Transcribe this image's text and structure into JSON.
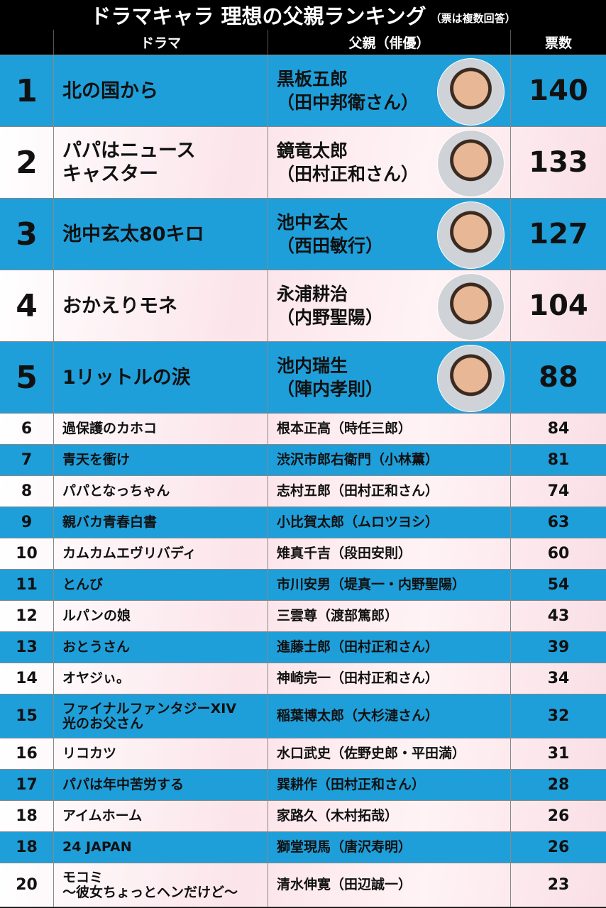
{
  "title": "ドラマキャラ 理想の父親ランキング",
  "subtitle": "（票は複数回答）",
  "header": [
    "ドラマ",
    "父親（俳優）",
    "票数"
  ],
  "rows": [
    {
      "rank": 1,
      "drama": [
        "北の国から"
      ],
      "father": [
        "黒板五郎",
        "（田中邦衛さん）"
      ],
      "votes": 140
    },
    {
      "rank": 2,
      "drama": [
        "パパはニュース",
        "キャスター"
      ],
      "father": [
        "鏡竜太郎",
        "（田村正和さん）"
      ],
      "votes": 133
    },
    {
      "rank": 3,
      "drama": [
        "池中玄太80キロ"
      ],
      "father": [
        "池中玄太",
        "（西田敏行）"
      ],
      "votes": 127
    },
    {
      "rank": 4,
      "drama": [
        "おかえりモネ"
      ],
      "father": [
        "永浦耕治",
        "（内野聖陽）"
      ],
      "votes": 104
    },
    {
      "rank": 5,
      "drama": [
        "1リットルの涙"
      ],
      "father": [
        "池内瑞生",
        "（陣内孝則）"
      ],
      "votes": 88
    },
    {
      "rank": 6,
      "drama": [
        "過保護のカホコ"
      ],
      "father": [
        "根本正高（時任三郎）"
      ],
      "votes": 84
    },
    {
      "rank": 7,
      "drama": [
        "青天を衝け"
      ],
      "father": [
        "渋沢市郎右衛門（小林薫）"
      ],
      "votes": 81
    },
    {
      "rank": 8,
      "drama": [
        "パパとなっちゃん"
      ],
      "father": [
        "志村五郎（田村正和さん）"
      ],
      "votes": 74
    },
    {
      "rank": 9,
      "drama": [
        "親バカ青春白書"
      ],
      "father": [
        "小比賀太郎（ムロツヨシ）"
      ],
      "votes": 63
    },
    {
      "rank": 10,
      "drama": [
        "カムカムエヴリバディ"
      ],
      "father": [
        "雉真千吉（段田安則）"
      ],
      "votes": 60
    },
    {
      "rank": 11,
      "drama": [
        "とんび"
      ],
      "father": [
        "市川安男（堤真一・内野聖陽）"
      ],
      "votes": 54
    },
    {
      "rank": 12,
      "drama": [
        "ルパンの娘"
      ],
      "father": [
        "三雲尊（渡部篤郎）"
      ],
      "votes": 43
    },
    {
      "rank": 13,
      "drama": [
        "おとうさん"
      ],
      "father": [
        "進藤士郎（田村正和さん）"
      ],
      "votes": 39
    },
    {
      "rank": 14,
      "drama": [
        "オヤジぃ。"
      ],
      "father": [
        "神崎完一（田村正和さん）"
      ],
      "votes": 34
    },
    {
      "rank": 15,
      "drama": [
        "ファイナルファンタジーXIV",
        "光のお父さん"
      ],
      "father": [
        "稲葉博太郎（大杉漣さん）"
      ],
      "votes": 32
    },
    {
      "rank": 16,
      "drama": [
        "リコカツ"
      ],
      "father": [
        "水口武史（佐野史郎・平田満）"
      ],
      "votes": 31
    },
    {
      "rank": 17,
      "drama": [
        "パパは年中苦労する"
      ],
      "father": [
        "巽耕作（田村正和さん）"
      ],
      "votes": 28
    },
    {
      "rank": 18,
      "drama": [
        "アイムホーム"
      ],
      "father": [
        "家路久（木村拓哉）"
      ],
      "votes": 26
    },
    {
      "rank": 18,
      "drama": [
        "24 JAPAN"
      ],
      "father": [
        "獅堂現馬（唐沢寿明）"
      ],
      "votes": 26
    },
    {
      "rank": 20,
      "drama": [
        "モコミ",
        "～彼女ちょっとヘンだけど～"
      ],
      "father": [
        "清水伸寛（田辺誠一）"
      ],
      "votes": 23
    }
  ]
}
